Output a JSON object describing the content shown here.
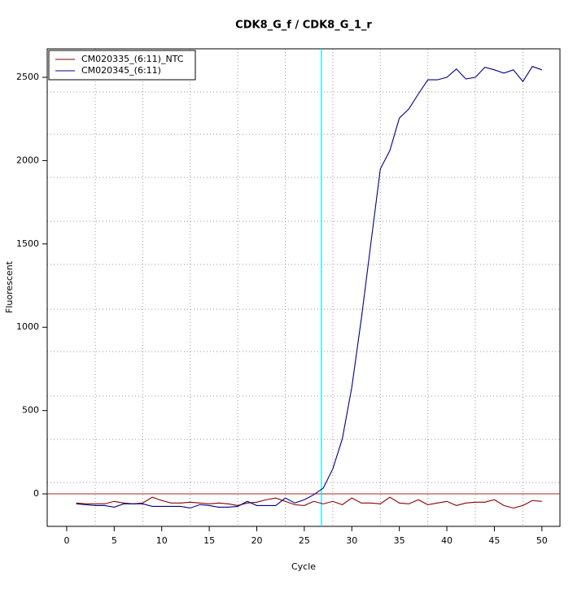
{
  "chart_data": {
    "type": "line",
    "title": "CDK8_G_f / CDK8_G_1_r",
    "x_label": "Cycle",
    "y_label": "Fluorescent",
    "x": [
      1,
      2,
      3,
      4,
      5,
      6,
      7,
      8,
      9,
      10,
      11,
      12,
      13,
      14,
      15,
      16,
      17,
      18,
      19,
      20,
      21,
      22,
      23,
      24,
      25,
      26,
      27,
      28,
      29,
      30,
      31,
      32,
      33,
      34,
      35,
      36,
      37,
      38,
      39,
      40,
      41,
      42,
      43,
      44,
      45,
      46,
      47,
      48,
      49,
      50
    ],
    "series": [
      {
        "name": "CM020335_(6:11)_NTC",
        "color": "#8b0000",
        "values": [
          -55,
          -60,
          -60,
          -60,
          -45,
          -55,
          -60,
          -55,
          -20,
          -40,
          -55,
          -55,
          -50,
          -55,
          -60,
          -55,
          -60,
          -70,
          -55,
          -50,
          -35,
          -25,
          -45,
          -65,
          -70,
          -45,
          -60,
          -45,
          -65,
          -25,
          -55,
          -55,
          -60,
          -20,
          -55,
          -60,
          -35,
          -65,
          -55,
          -45,
          -70,
          -55,
          -50,
          -50,
          -35,
          -70,
          -85,
          -70,
          -40,
          -45
        ]
      },
      {
        "name": "CM020345_(6:11)",
        "color": "#00008b",
        "values": [
          -60,
          -65,
          -70,
          -70,
          -80,
          -60,
          -60,
          -60,
          -75,
          -75,
          -75,
          -75,
          -85,
          -65,
          -70,
          -80,
          -80,
          -75,
          -45,
          -70,
          -70,
          -70,
          -25,
          -55,
          -35,
          -5,
          35,
          150,
          330,
          640,
          1050,
          1500,
          1950,
          2060,
          2255,
          2310,
          2400,
          2485,
          2485,
          2500,
          2550,
          2490,
          2500,
          2560,
          2545,
          2525,
          2545,
          2475,
          2565,
          2545
        ]
      }
    ],
    "xlim": [
      -2.05,
      51.9
    ],
    "ylim": [
      -195,
      2671
    ],
    "xticks": [
      0,
      5,
      10,
      15,
      20,
      25,
      30,
      35,
      40,
      45,
      50
    ],
    "yticks": [
      0,
      500,
      1000,
      1500,
      2000,
      2500
    ],
    "x_grid": [
      3,
      8,
      13,
      18,
      23,
      28,
      33,
      38,
      43,
      48
    ],
    "y_grid": [
      68,
      327,
      586,
      854,
      1108,
      1377,
      1636,
      1899,
      2158,
      2412
    ],
    "baseline": 0,
    "baseline_color": "#b22222",
    "threshold_cycle": 26.8,
    "threshold_color": "#00e5ee",
    "legend": "top-left"
  }
}
